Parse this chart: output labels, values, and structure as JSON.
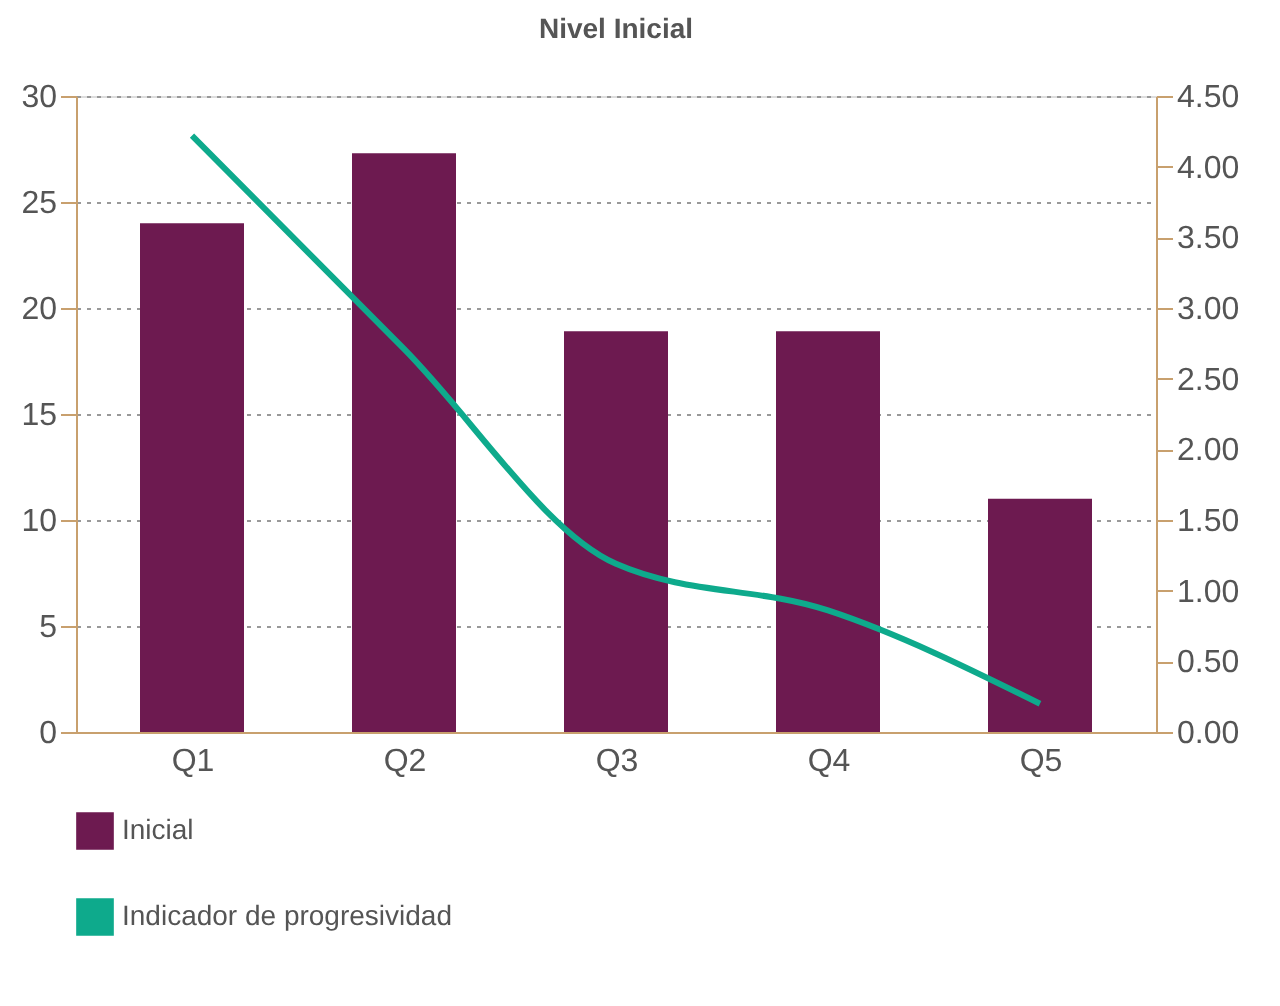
{
  "chart_data": {
    "type": "bar",
    "title": "Nivel Inicial",
    "categories": [
      "Q1",
      "Q2",
      "Q3",
      "Q4",
      "Q5"
    ],
    "series": [
      {
        "name": "Inicial",
        "color": "#6d1a50",
        "values": [
          24.0,
          27.3,
          18.9,
          18.9,
          11.0
        ]
      },
      {
        "name": "Indicador de progresividad",
        "type": "line",
        "axis": "y2",
        "color": "#0eaa8c",
        "values": [
          4.22,
          2.71,
          1.19,
          0.86,
          0.2
        ]
      }
    ],
    "ylim": [
      0,
      30
    ],
    "yticks": [
      0,
      5,
      10,
      15,
      20,
      25,
      30
    ],
    "y2lim": [
      0,
      4.5
    ],
    "y2ticks": [
      {
        "value": 0,
        "label": "0.00"
      },
      {
        "value": 0.5,
        "label": "0.50"
      },
      {
        "value": 1,
        "label": "1.00"
      },
      {
        "value": 1.5,
        "label": "1.50"
      },
      {
        "value": 2,
        "label": "2.00"
      },
      {
        "value": 2.5,
        "label": "2.50"
      },
      {
        "value": 3,
        "label": "3.00"
      },
      {
        "value": 3.5,
        "label": "3.50"
      },
      {
        "value": 4,
        "label": "4.00"
      },
      {
        "value": 4.5,
        "label": "4.50"
      }
    ],
    "grid": "y",
    "legend": "bottom"
  }
}
